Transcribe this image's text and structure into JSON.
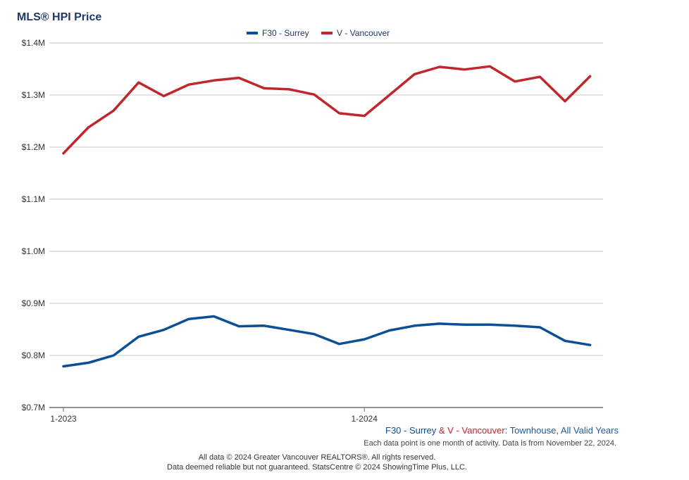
{
  "header": {
    "title": "MLS® HPI Price"
  },
  "chart_data": {
    "type": "line",
    "title": "MLS® HPI Price",
    "xlabel": "",
    "ylabel": "",
    "ylim": [
      0.7,
      1.4
    ],
    "yticks": [
      0.7,
      0.8,
      0.9,
      1.0,
      1.1,
      1.2,
      1.3,
      1.4
    ],
    "ytick_labels": [
      "$0.7M",
      "$0.8M",
      "$0.9M",
      "$1.0M",
      "$1.1M",
      "$1.2M",
      "$1.3M",
      "$1.4M"
    ],
    "x": [
      "1-2023",
      "2-2023",
      "3-2023",
      "4-2023",
      "5-2023",
      "6-2023",
      "7-2023",
      "8-2023",
      "9-2023",
      "10-2023",
      "11-2023",
      "12-2023",
      "1-2024",
      "2-2024",
      "3-2024",
      "4-2024",
      "5-2024",
      "6-2024",
      "7-2024",
      "8-2024",
      "9-2024",
      "10-2024",
      "11-2024"
    ],
    "xtick_labels": [
      {
        "index": 0,
        "label": "1-2023"
      },
      {
        "index": 12,
        "label": "1-2024"
      }
    ],
    "legend_position": "top-center",
    "series": [
      {
        "name": "F30 - Surrey",
        "color": "#0b4f97",
        "values": [
          0.779,
          0.786,
          0.8,
          0.836,
          0.849,
          0.87,
          0.875,
          0.856,
          0.857,
          0.849,
          0.841,
          0.822,
          0.831,
          0.848,
          0.857,
          0.861,
          0.859,
          0.859,
          0.857,
          0.854,
          0.828,
          0.82,
          null
        ]
      },
      {
        "name": "V - Vancouver",
        "color": "#c0272d",
        "values": [
          1.188,
          1.238,
          1.27,
          1.324,
          1.298,
          1.32,
          1.328,
          1.333,
          1.313,
          1.311,
          1.301,
          1.265,
          1.26,
          1.3,
          1.34,
          1.354,
          1.349,
          1.355,
          1.326,
          1.335,
          1.288,
          1.336,
          null
        ]
      }
    ]
  },
  "caption": {
    "series1": "F30 - Surrey",
    "amp": " & ",
    "series2": "V - Vancouver",
    "rest": ": Townhouse, All Valid Years"
  },
  "note": "Each data point is one month of activity. Data is from November 22, 2024.",
  "footer": {
    "line1": "All data © 2024 Greater Vancouver REALTORS®. All rights reserved.",
    "line2": "Data deemed reliable but not guaranteed. StatsCentre © 2024 ShowingTime Plus, LLC."
  }
}
